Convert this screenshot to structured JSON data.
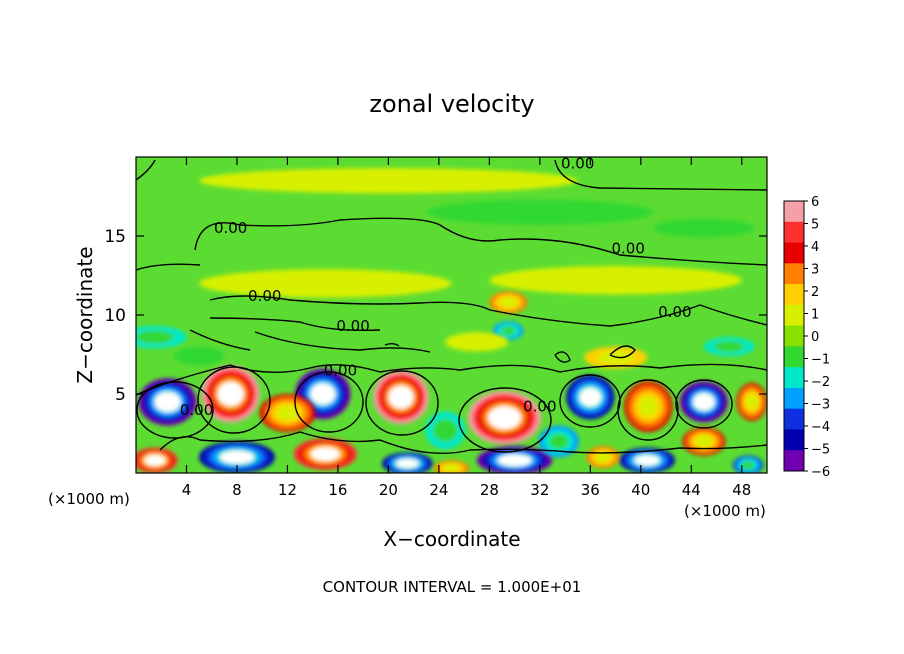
{
  "chart_data": {
    "type": "contour",
    "title": "zonal velocity",
    "xlabel": "X−coordinate",
    "ylabel": "Z−coordinate",
    "x_unit_left": "(×1000 m)",
    "x_unit_right": "(×1000 m)",
    "footer": "CONTOUR INTERVAL = 1.000E+01",
    "xlim": [
      0,
      50
    ],
    "ylim": [
      0,
      20
    ],
    "x_ticks": [
      4,
      8,
      12,
      16,
      20,
      24,
      28,
      32,
      36,
      40,
      44,
      48
    ],
    "y_ticks": [
      5,
      10,
      15
    ],
    "x_tick_labels": [
      "4",
      "8",
      "12",
      "16",
      "20",
      "24",
      "28",
      "32",
      "36",
      "40",
      "44",
      "48"
    ],
    "y_tick_labels": [
      "5",
      "10",
      "15"
    ],
    "colorbar": {
      "ticks": [
        "6",
        "5",
        "4",
        "3",
        "2",
        "1",
        "0",
        "−1",
        "−2",
        "−3",
        "−4",
        "−5",
        "−6"
      ],
      "colors": [
        "#f4a0a8",
        "#ff3030",
        "#e80000",
        "#ff8000",
        "#ffd000",
        "#d8f000",
        "#88e000",
        "#30d830",
        "#00e8c8",
        "#00a0ff",
        "#1030e0",
        "#0000b0",
        "#7000b0"
      ]
    },
    "contour_labels": [
      {
        "text": "0.00",
        "x": 35,
        "z": 19.6
      },
      {
        "text": "0.00",
        "x": 7.5,
        "z": 15.5
      },
      {
        "text": "0.00",
        "x": 39.0,
        "z": 14.2
      },
      {
        "text": "0.00",
        "x": 10.2,
        "z": 11.2
      },
      {
        "text": "0.00",
        "x": 42.7,
        "z": 10.2
      },
      {
        "text": "0.00",
        "x": 17.2,
        "z": 9.3
      },
      {
        "text": "0.00",
        "x": 16.2,
        "z": 6.5
      },
      {
        "text": "0.00",
        "x": 4.8,
        "z": 4.0
      },
      {
        "text": "0.00",
        "x": 32.0,
        "z": 4.2
      }
    ],
    "cells": [
      {
        "x": 2.5,
        "z": 4.5,
        "rx": 2.3,
        "rz": 1.5,
        "value": -6
      },
      {
        "x": 7.5,
        "z": 5.0,
        "rx": 2.3,
        "rz": 1.8,
        "value": 6
      },
      {
        "x": 14.8,
        "z": 5.0,
        "rx": 2.2,
        "rz": 1.6,
        "value": -6
      },
      {
        "x": 21.0,
        "z": 4.8,
        "rx": 2.2,
        "rz": 1.7,
        "value": 6
      },
      {
        "x": 29.2,
        "z": 3.5,
        "rx": 2.9,
        "rz": 1.7,
        "value": 6
      },
      {
        "x": 36.0,
        "z": 4.8,
        "rx": 1.9,
        "rz": 1.4,
        "value": -5
      },
      {
        "x": 40.6,
        "z": 4.2,
        "rx": 1.9,
        "rz": 1.6,
        "value": 4
      },
      {
        "x": 45.0,
        "z": 4.5,
        "rx": 1.9,
        "rz": 1.3,
        "value": -6
      },
      {
        "x": 48.8,
        "z": 4.5,
        "rx": 1.2,
        "rz": 1.2,
        "value": 4
      },
      {
        "x": 8.0,
        "z": 1.0,
        "rx": 3.0,
        "rz": 1.0,
        "value": -5
      },
      {
        "x": 1.5,
        "z": 0.8,
        "rx": 1.8,
        "rz": 0.8,
        "value": 5
      },
      {
        "x": 15.0,
        "z": 1.2,
        "rx": 2.5,
        "rz": 1.0,
        "value": 5
      },
      {
        "x": 21.5,
        "z": 0.6,
        "rx": 2.0,
        "rz": 0.7,
        "value": -5
      },
      {
        "x": 30.0,
        "z": 0.8,
        "rx": 3.0,
        "rz": 0.9,
        "value": -6
      },
      {
        "x": 25.0,
        "z": 0.3,
        "rx": 1.4,
        "rz": 0.5,
        "value": 3
      },
      {
        "x": 40.5,
        "z": 0.8,
        "rx": 2.2,
        "rz": 0.8,
        "value": -5
      },
      {
        "x": 45.0,
        "z": 2.0,
        "rx": 1.7,
        "rz": 0.9,
        "value": 4
      },
      {
        "x": 37.0,
        "z": 1.0,
        "rx": 1.3,
        "rz": 0.7,
        "value": 3
      },
      {
        "x": 48.5,
        "z": 0.5,
        "rx": 1.2,
        "rz": 0.6,
        "value": -4
      },
      {
        "x": 12.0,
        "z": 3.8,
        "rx": 2.2,
        "rz": 1.2,
        "value": 4
      },
      {
        "x": 33.5,
        "z": 2.0,
        "rx": 1.6,
        "rz": 1.0,
        "value": -3
      },
      {
        "x": 24.5,
        "z": 2.7,
        "rx": 1.6,
        "rz": 1.2,
        "value": -2
      },
      {
        "x": 1.5,
        "z": 8.6,
        "rx": 2.5,
        "rz": 0.7,
        "value": -2
      },
      {
        "x": 5.0,
        "z": 7.4,
        "rx": 2.0,
        "rz": 0.6,
        "value": -1
      },
      {
        "x": 29.5,
        "z": 9.0,
        "rx": 1.2,
        "rz": 0.6,
        "value": -3
      },
      {
        "x": 47.0,
        "z": 8.0,
        "rx": 2.0,
        "rz": 0.6,
        "value": -2
      },
      {
        "x": 38.0,
        "z": 7.3,
        "rx": 2.5,
        "rz": 0.7,
        "value": 2
      },
      {
        "x": 27.0,
        "z": 8.3,
        "rx": 2.5,
        "rz": 0.6,
        "value": 1
      },
      {
        "x": 15.0,
        "z": 12.0,
        "rx": 10.0,
        "rz": 0.9,
        "value": 1
      },
      {
        "x": 38.0,
        "z": 12.2,
        "rx": 10.0,
        "rz": 0.9,
        "value": 1
      },
      {
        "x": 29.5,
        "z": 10.8,
        "rx": 1.5,
        "rz": 0.7,
        "value": 3
      },
      {
        "x": 32.0,
        "z": 16.5,
        "rx": 9.0,
        "rz": 0.8,
        "value": -1
      },
      {
        "x": 20.0,
        "z": 18.5,
        "rx": 15.0,
        "rz": 0.8,
        "value": 1
      },
      {
        "x": 45.0,
        "z": 15.5,
        "rx": 4.0,
        "rz": 0.6,
        "value": -1
      }
    ]
  }
}
